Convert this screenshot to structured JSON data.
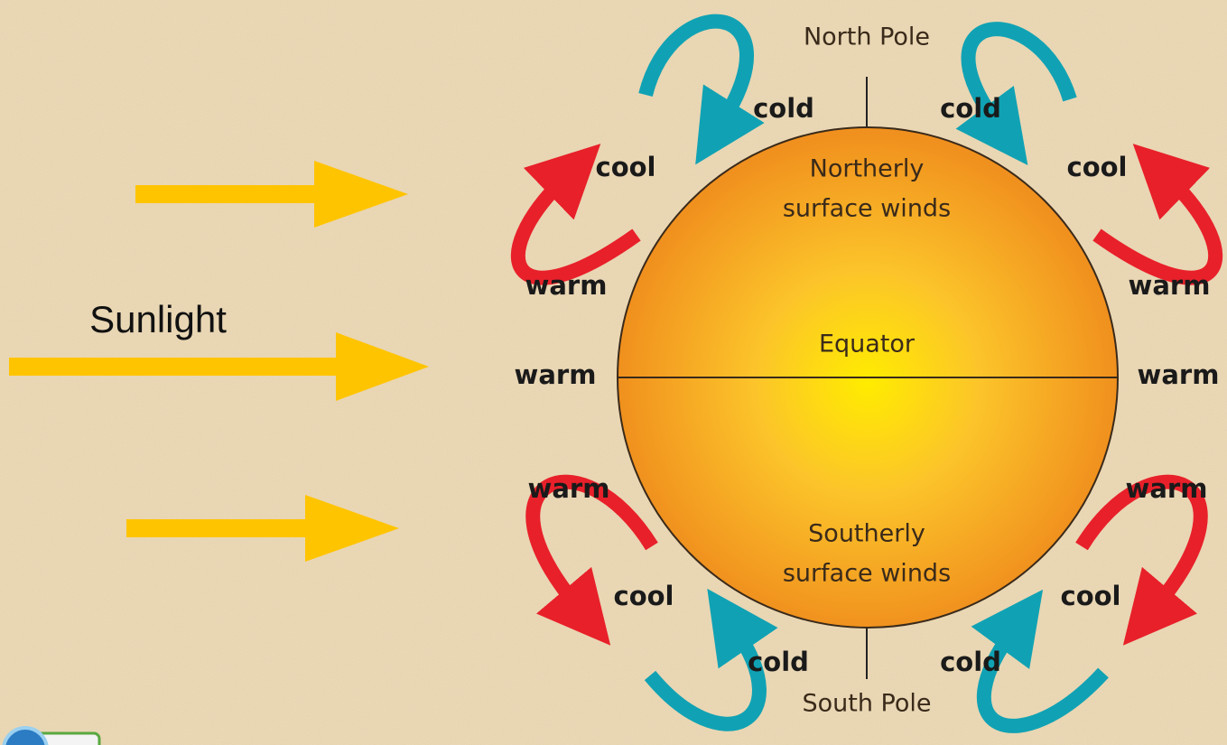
{
  "sunlight": "Sunlight",
  "globe": {
    "north_pole": "North Pole",
    "south_pole": "South Pole",
    "equator": "Equator",
    "northern_winds": [
      "Northerly",
      "surface winds"
    ],
    "southern_winds": [
      "Southerly",
      "surface winds"
    ]
  },
  "labels": [
    "cold",
    "cold",
    "cool",
    "cool",
    "warm",
    "warm",
    "warm",
    "warm",
    "warm",
    "warm",
    "cool",
    "cool",
    "cold",
    "cold"
  ]
}
